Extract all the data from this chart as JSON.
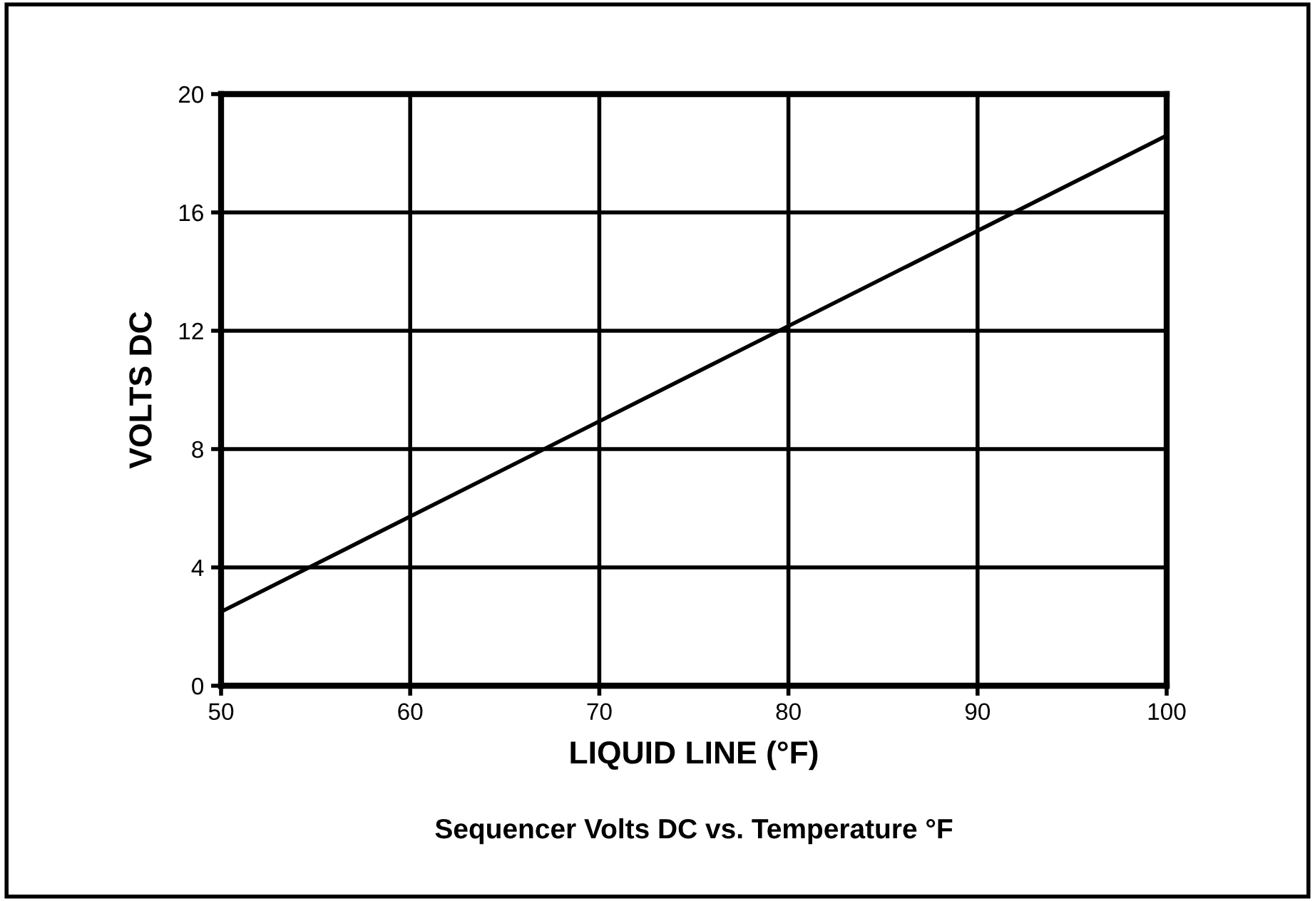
{
  "chart_data": {
    "type": "line",
    "title": "Sequencer Volts DC vs. Temperature °F",
    "xlabel": "LIQUID LINE (°F)",
    "ylabel": "VOLTS DC",
    "x": [
      50,
      100
    ],
    "series": [
      {
        "color": "#000000",
        "values": [
          2.5,
          18.6
        ]
      }
    ],
    "xlim": [
      50,
      100
    ],
    "xticks": [
      50,
      60,
      70,
      80,
      90,
      100
    ],
    "ylim": [
      0,
      20
    ],
    "yticks": [
      0,
      4,
      8,
      12,
      16,
      20
    ],
    "grid": true,
    "marker": "none",
    "line_style": "solid"
  }
}
